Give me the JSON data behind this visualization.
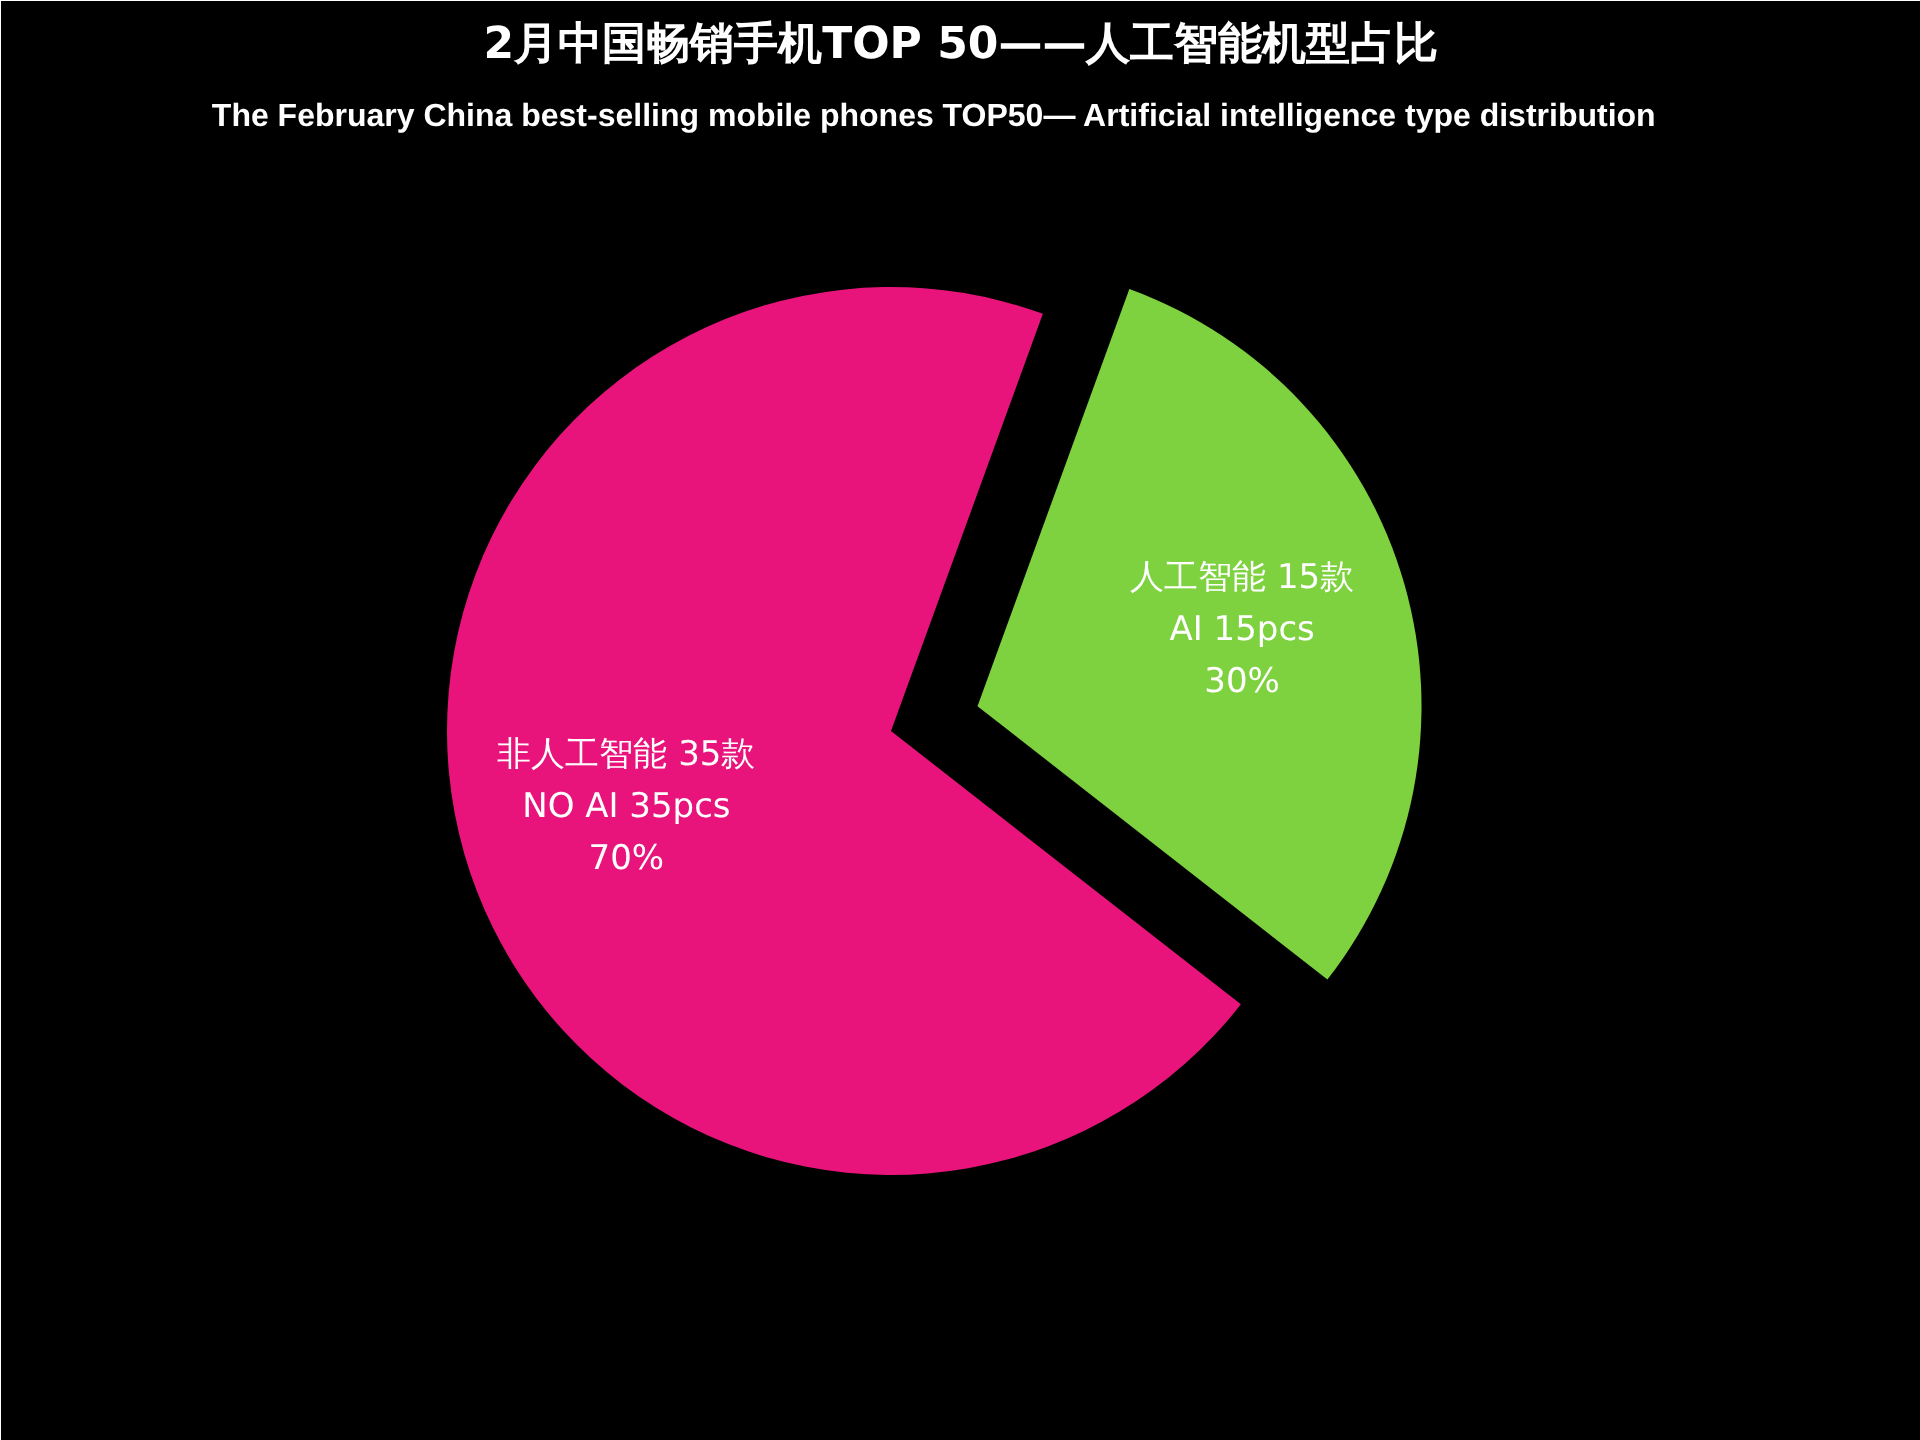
{
  "chart_data": {
    "type": "pie",
    "title": "2月中国畅销手机TOP 50——人工智能机型占比",
    "subtitle": "The  February  China  best-selling  mobile  phones  TOP50— Artificial intelligence type distribution",
    "categories": [
      "人工智能 15款\nAI 15pcs\n30%",
      "非人工智能 35款\nNO AI 35pcs\n70%"
    ],
    "values": [
      15,
      35
    ],
    "colors": [
      "#7ed13f",
      "#e8147c"
    ]
  }
}
